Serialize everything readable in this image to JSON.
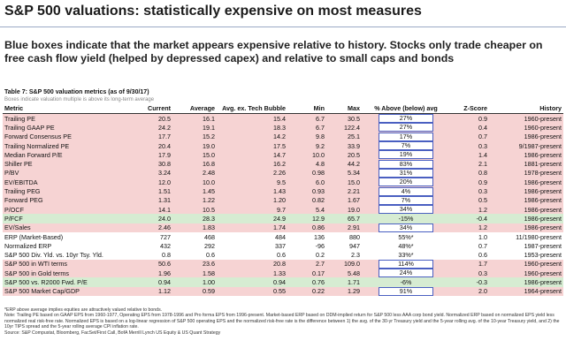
{
  "header": {
    "title": "S&P 500 valuations: statistically expensive on most measures",
    "subtitle": "Blue boxes indicate that the market appears expensive relative to history. Stocks only trade cheaper on free cash flow yield (helped by depressed capex) and relative to small caps and bonds"
  },
  "table": {
    "caption": "Table 7: S&P 500 valuation metrics (as of 9/30/17)",
    "note": "Boxes indicate valuation multiple is above its long-term average",
    "columns": [
      "Metric",
      "Current",
      "Average",
      "Avg. ex. Tech Bubble",
      "Min",
      "Max",
      "% Above (below) avg",
      "Z-Score",
      "History"
    ],
    "rows": [
      {
        "cells": [
          "Trailing PE",
          "20.5",
          "16.1",
          "15.4",
          "6.7",
          "30.5",
          "27%",
          "0.9",
          "1960-present"
        ],
        "shade": "#f6d3d3",
        "boxed": true
      },
      {
        "cells": [
          "Trailing GAAP PE",
          "24.2",
          "19.1",
          "18.3",
          "6.7",
          "122.4",
          "27%",
          "0.4",
          "1960-present"
        ],
        "shade": "#f6d3d3",
        "boxed": true
      },
      {
        "cells": [
          "Forward Consensus PE",
          "17.7",
          "15.2",
          "14.2",
          "9.8",
          "25.1",
          "17%",
          "0.7",
          "1986-present"
        ],
        "shade": "#f6d3d3",
        "boxed": true
      },
      {
        "cells": [
          "Trailing Normalized PE",
          "20.4",
          "19.0",
          "17.5",
          "9.2",
          "33.9",
          "7%",
          "0.3",
          "9/1987-present"
        ],
        "shade": "#f6d3d3",
        "boxed": true
      },
      {
        "cells": [
          "Median Forward P/E",
          "17.9",
          "15.0",
          "14.7",
          "10.0",
          "20.5",
          "19%",
          "1.4",
          "1986-present"
        ],
        "shade": "#f6d3d3",
        "boxed": true
      },
      {
        "cells": [
          "Shiller PE",
          "30.8",
          "16.8",
          "16.2",
          "4.8",
          "44.2",
          "83%",
          "2.1",
          "1881-present"
        ],
        "shade": "#f6d3d3",
        "boxed": true
      },
      {
        "cells": [
          "P/BV",
          "3.24",
          "2.48",
          "2.26",
          "0.98",
          "5.34",
          "31%",
          "0.8",
          "1978-present"
        ],
        "shade": "#f6d3d3",
        "boxed": true
      },
      {
        "cells": [
          "EV/EBITDA",
          "12.0",
          "10.0",
          "9.5",
          "6.0",
          "15.0",
          "20%",
          "0.9",
          "1986-present"
        ],
        "shade": "#f6d3d3",
        "boxed": true
      },
      {
        "cells": [
          "Trailing PEG",
          "1.51",
          "1.45",
          "1.43",
          "0.93",
          "2.21",
          "4%",
          "0.3",
          "1986-present"
        ],
        "shade": "#f6d3d3",
        "boxed": true
      },
      {
        "cells": [
          "Forward PEG",
          "1.31",
          "1.22",
          "1.20",
          "0.82",
          "1.67",
          "7%",
          "0.5",
          "1986-present"
        ],
        "shade": "#f6d3d3",
        "boxed": true
      },
      {
        "cells": [
          "P/OCF",
          "14.1",
          "10.5",
          "9.7",
          "5.4",
          "19.0",
          "34%",
          "1.2",
          "1986-present"
        ],
        "shade": "#f6d3d3",
        "boxed": true
      },
      {
        "cells": [
          "P/FCF",
          "24.0",
          "28.3",
          "24.9",
          "12.9",
          "65.7",
          "-15%",
          "-0.4",
          "1986-present"
        ],
        "shade": "#d6ecd2",
        "boxed": false
      },
      {
        "cells": [
          "EV/Sales",
          "2.46",
          "1.83",
          "1.74",
          "0.86",
          "2.91",
          "34%",
          "1.2",
          "1986-present"
        ],
        "shade": "#f6d3d3",
        "boxed": true
      },
      {
        "cells": [
          "ERP (Market-Based)",
          "727",
          "468",
          "484",
          "136",
          "880",
          "55%*",
          "1.0",
          "11/1980-present"
        ],
        "shade": "#ffffff",
        "boxed": false
      },
      {
        "cells": [
          "Normalized ERP",
          "432",
          "292",
          "337",
          "-96",
          "947",
          "48%*",
          "0.7",
          "1987-present"
        ],
        "shade": "#ffffff",
        "boxed": false
      },
      {
        "cells": [
          "S&P 500 Div. Yld. vs. 10yr Tsy. Yld.",
          "0.8",
          "0.6",
          "0.6",
          "0.2",
          "2.3",
          "33%*",
          "0.6",
          "1953-present"
        ],
        "shade": "#ffffff",
        "boxed": false
      },
      {
        "cells": [
          "S&P 500 in WTI terms",
          "50.6",
          "23.6",
          "20.8",
          "2.7",
          "109.0",
          "114%",
          "1.7",
          "1960-present"
        ],
        "shade": "#f6d3d3",
        "boxed": true
      },
      {
        "cells": [
          "S&P 500 in Gold terms",
          "1.96",
          "1.58",
          "1.33",
          "0.17",
          "5.48",
          "24%",
          "0.3",
          "1960-present"
        ],
        "shade": "#f6d3d3",
        "boxed": true
      },
      {
        "cells": [
          "S&P 500 vs. R2000 Fwd. P/E",
          "0.94",
          "1.00",
          "0.94",
          "0.76",
          "1.71",
          "-6%",
          "-0.3",
          "1986-present"
        ],
        "shade": "#d6ecd2",
        "boxed": false
      },
      {
        "cells": [
          "S&P 500 Market Cap/GDP",
          "1.12",
          "0.59",
          "0.55",
          "0.22",
          "1.29",
          "91%",
          "2.0",
          "1964-present"
        ],
        "shade": "#f6d3d3",
        "boxed": true
      }
    ]
  },
  "footnotes": [
    "*ERP above average implies equities are attractively valued relative to bonds.",
    "Note: Trailing PE based on GAAP EPS from 1960-1977, Operating EPS from 1978-1996 and Pro forma EPS from 1996-present. Market-based ERP based on DDM-implied return for S&P 500 less AAA corp bond yield. Normalized ERP based on normalized EPS yield less normalized real risk-free rate. Normalized EPS is based on a log-linear regression of S&P 500 operating EPS and the normalized risk-free rate is the difference between 1) the avg. of the 30-yr Treasury yield and the 5-year rolling avg. of the 10-year Treasury yield, and 2) the 10yr TIPS spread and the 5-year rolling average CPI inflation rate.",
    "Source: S&P Compustat, Bloomberg, FacSet/First Call, BofA Merrill Lynch US Equity & US Quant Strategy"
  ]
}
